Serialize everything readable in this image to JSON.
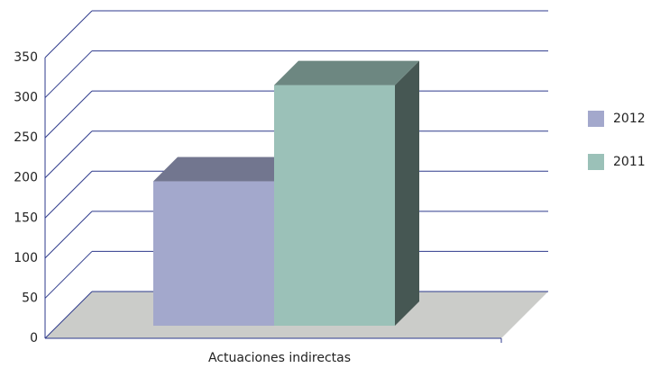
{
  "chart_data": {
    "type": "bar3d",
    "categories": [
      "Actuaciones indirectas"
    ],
    "series": [
      {
        "name": "2012",
        "color": "#a3a8cc",
        "values": [
          180
        ]
      },
      {
        "name": "2011",
        "color": "#9bc1b8",
        "values": [
          300
        ]
      }
    ],
    "ylim": [
      0,
      350
    ],
    "yticks": [
      0,
      50,
      100,
      150,
      200,
      250,
      300,
      350
    ],
    "grid": true,
    "legend": "right"
  }
}
